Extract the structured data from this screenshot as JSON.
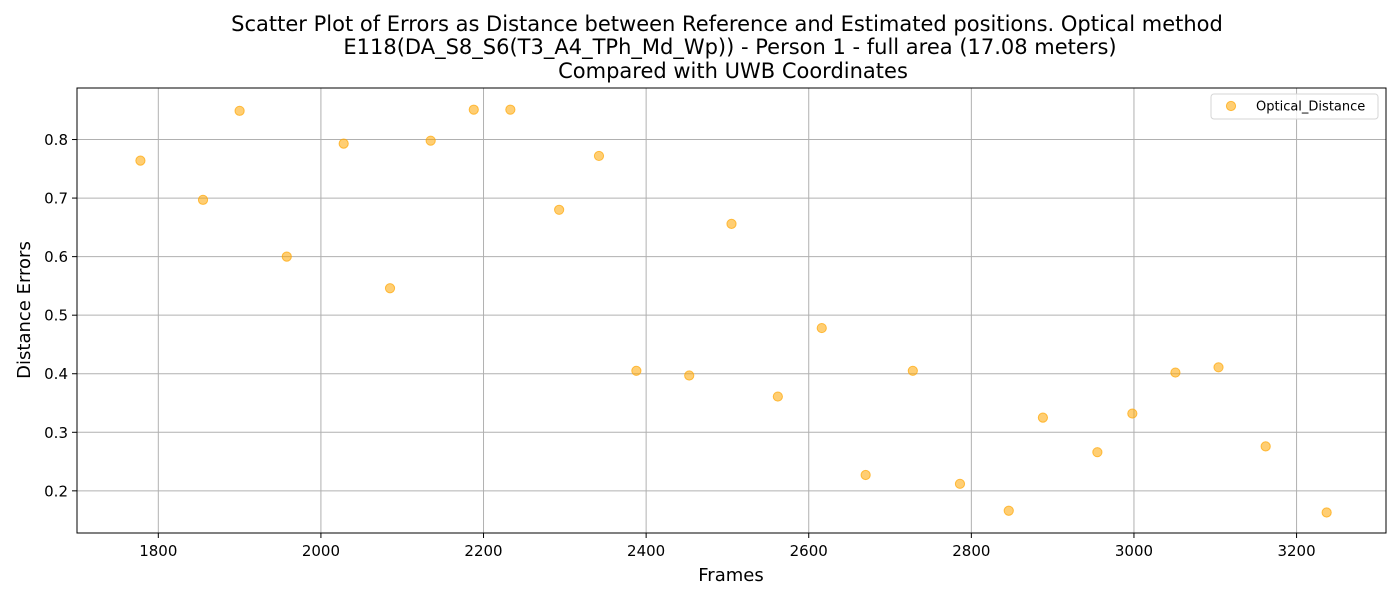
{
  "chart_data": {
    "type": "scatter",
    "title_lines": [
      "Scatter Plot of Errors as Distance between Reference and Estimated positions. Optical method",
      "E118(DA_S8_S6(T3_A4_TPh_Md_Wp)) - Person 1 - full area (17.08 meters)",
      "Compared with UWB Coordinates"
    ],
    "xlabel": "Frames",
    "ylabel": "Distance Errors",
    "xlim": [
      1700,
      3310
    ],
    "ylim": [
      0.128,
      0.888
    ],
    "xticks": [
      1800,
      2000,
      2200,
      2400,
      2600,
      2800,
      3000,
      3200
    ],
    "yticks": [
      0.2,
      0.3,
      0.4,
      0.5,
      0.6,
      0.7,
      0.8
    ],
    "xtick_labels": [
      "1800",
      "2000",
      "2200",
      "2400",
      "2600",
      "2800",
      "3000",
      "3200"
    ],
    "ytick_labels": [
      "0.2",
      "0.3",
      "0.4",
      "0.5",
      "0.6",
      "0.7",
      "0.8"
    ],
    "grid": true,
    "legend_position": "top-right",
    "series": [
      {
        "name": "Optical_Distance",
        "color": "#ffa500",
        "x": [
          1778,
          1855,
          1900,
          1958,
          2028,
          2085,
          2135,
          2188,
          2233,
          2293,
          2342,
          2388,
          2453,
          2505,
          2562,
          2616,
          2670,
          2728,
          2786,
          2846,
          2888,
          2955,
          2998,
          3051,
          3104,
          3162,
          3237
        ],
        "y": [
          0.764,
          0.697,
          0.849,
          0.6,
          0.793,
          0.546,
          0.798,
          0.851,
          0.851,
          0.68,
          0.772,
          0.405,
          0.397,
          0.656,
          0.361,
          0.478,
          0.227,
          0.405,
          0.212,
          0.166,
          0.325,
          0.266,
          0.332,
          0.402,
          0.411,
          0.276,
          0.163
        ]
      }
    ]
  }
}
